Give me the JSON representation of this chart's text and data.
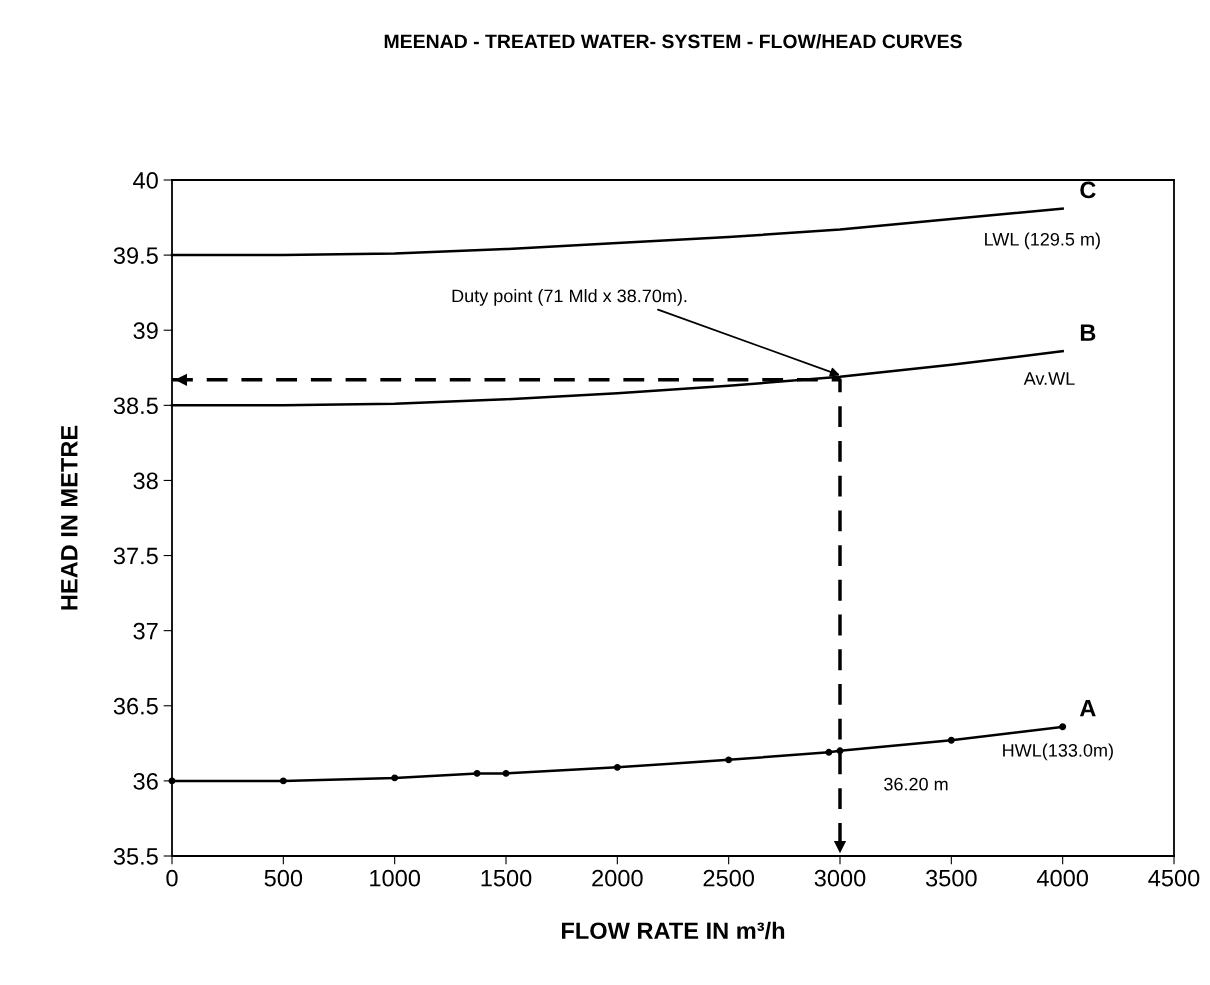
{
  "chart_data": {
    "type": "line",
    "title": "MEENAD - TREATED WATER- SYSTEM - FLOW/HEAD CURVES",
    "xlabel": "FLOW RATE IN m³/h",
    "ylabel": "HEAD IN METRE",
    "xlim": [
      0,
      4500
    ],
    "xticks": [
      0,
      500,
      1000,
      1500,
      2000,
      2500,
      3000,
      3500,
      4000,
      4500
    ],
    "ylim": [
      35.5,
      40
    ],
    "yticks": [
      35.5,
      {
        "value": 36,
        "label": "36"
      },
      36.5,
      {
        "value": 37,
        "label": "37"
      },
      37.5,
      {
        "value": 38,
        "label": "38"
      },
      38.5,
      {
        "value": 39,
        "label": "39"
      },
      39.5,
      {
        "value": 40,
        "label": "40"
      }
    ],
    "grid": false,
    "legend": false,
    "line_style": "solid",
    "series": [
      {
        "name": "C",
        "color": "#000000",
        "marker": "none",
        "x": [
          0,
          500,
          1000,
          1500,
          2000,
          2500,
          3000,
          3500,
          4000
        ],
        "values": [
          39.5,
          39.5,
          39.51,
          39.54,
          39.58,
          39.62,
          39.67,
          39.74,
          39.81
        ]
      },
      {
        "name": "B",
        "color": "#000000",
        "marker": "none",
        "x": [
          0,
          500,
          1000,
          1500,
          2000,
          2500,
          3000,
          3500,
          4000
        ],
        "values": [
          38.5,
          38.5,
          38.51,
          38.54,
          38.58,
          38.63,
          38.69,
          38.77,
          38.86
        ]
      },
      {
        "name": "A",
        "color": "#000000",
        "marker": "circle",
        "x": [
          0,
          500,
          1000,
          1370,
          1500,
          2000,
          2500,
          2950,
          3000,
          3500,
          4000
        ],
        "values": [
          36.0,
          36.0,
          36.02,
          36.05,
          36.05,
          36.09,
          36.14,
          36.19,
          36.2,
          36.27,
          36.36
        ]
      },
      {
        "color": "#000000",
        "marker": "none",
        "line_style": "dashed",
        "x": [
          0,
          3000,
          3000
        ],
        "values": [
          38.67,
          38.67,
          35.5
        ]
      }
    ],
    "annotations": [
      "LWL (129.5 m)",
      "Av.WL",
      "HWL(133.0m)",
      "36.20 m",
      {
        "text": "Duty point (71 Mld x 38.70m).",
        "x": 3000,
        "y": 38.7
      }
    ]
  }
}
